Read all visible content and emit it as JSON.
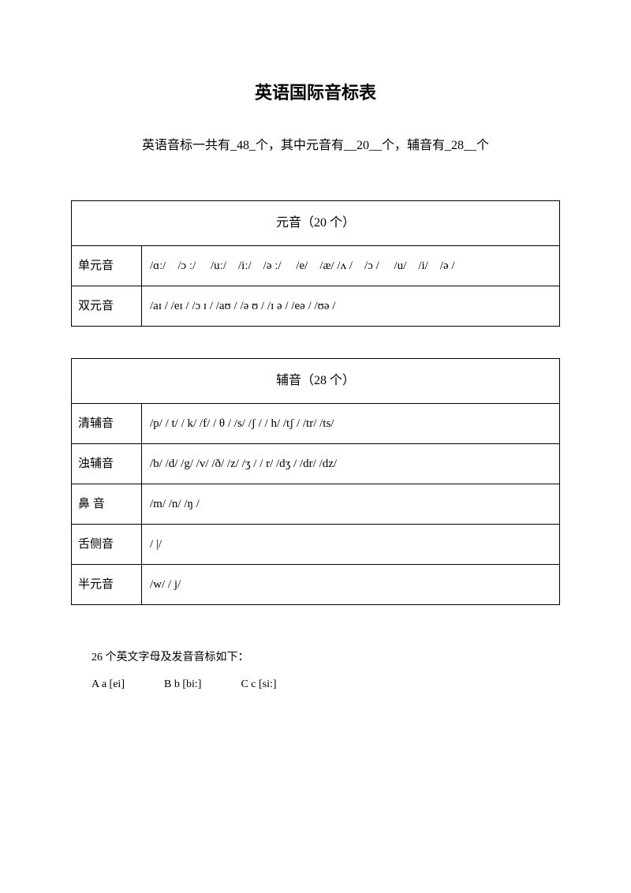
{
  "title": "英语国际音标表",
  "subtitle": "英语音标一共有_48_个，其中元音有__20__个，辅音有_28__个",
  "vowel_table": {
    "header": "元音（20 个）",
    "rows": [
      {
        "label": "单元音",
        "content": "/ɑː/ /ɔ ː/  /uː/ /iː/ /ə ː/  /e/ /æ/   /ʌ / /ɔ /  /u/ /i/ /ə /"
      },
      {
        "label": "双元音",
        "content": "/aɪ /  /eɪ /   /ɔ ɪ /   /aʊ /  /ə ʊ /  /ɪ ə /   /eə /  /ʊə  /"
      }
    ]
  },
  "consonant_table": {
    "header": "辅音（28 个）",
    "rows": [
      {
        "label": "清辅音",
        "content": "/p/  / t/  / k/  /f/  / θ /  /s/  /ʃ / / h/ /tʃ /  /tr/  /ts/"
      },
      {
        "label": "浊辅音",
        "content": "/b/   /d/   /g/   /v/   /ð/   /z/   /ʒ /  / r/ /dʒ / /dr/  /dz/"
      },
      {
        "label": "鼻  音",
        "content": "/m/   /n/   /ŋ /"
      },
      {
        "label": "舌侧音",
        "content": "/ |/"
      },
      {
        "label": "半元音",
        "content": "/w/  / j/"
      }
    ]
  },
  "footer": {
    "intro": "26 个英文字母及发音音标如下：",
    "letters": [
      "A a [ei]",
      "B b [bi:]",
      "C c [si:]"
    ]
  }
}
